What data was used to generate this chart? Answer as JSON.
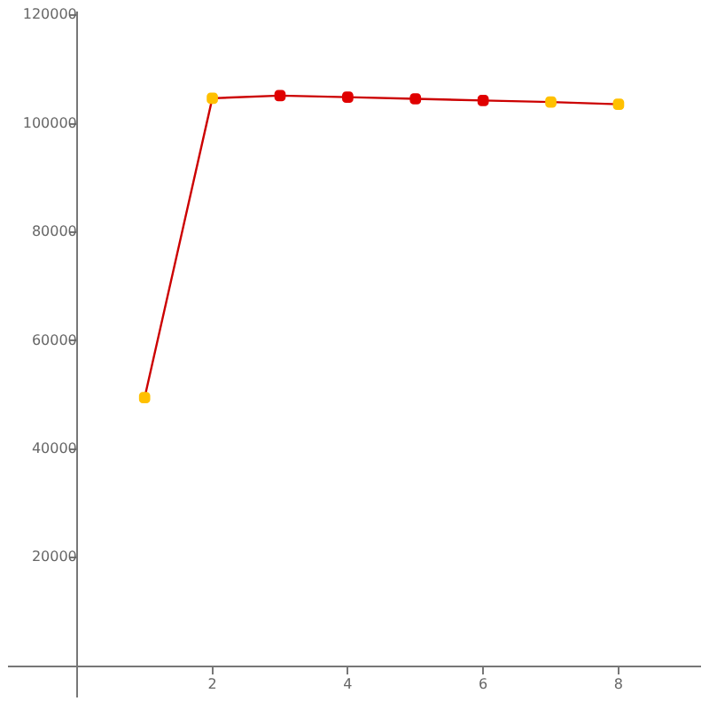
{
  "chart_data": {
    "type": "line",
    "x": [
      1,
      2,
      3,
      4,
      5,
      6,
      7,
      8
    ],
    "series": [
      {
        "color": "#cc0000",
        "colors": [
          "#ffc000",
          "#ffc000",
          "#e00000",
          "#e00000",
          "#e00000",
          "#e00000",
          "#ffc000",
          "#ffc000"
        ],
        "values": [
          49500,
          104700,
          105200,
          104900,
          104600,
          104300,
          104000,
          103600
        ]
      }
    ],
    "xlim": [
      -1,
      9.2
    ],
    "ylim": [
      -5700,
      120600
    ],
    "xticks": [
      2,
      4,
      6,
      8
    ],
    "yticks": [
      20000,
      40000,
      60000,
      80000,
      100000,
      120000
    ],
    "grid": false,
    "legend": false,
    "marker": "square",
    "line_style": "solid"
  }
}
